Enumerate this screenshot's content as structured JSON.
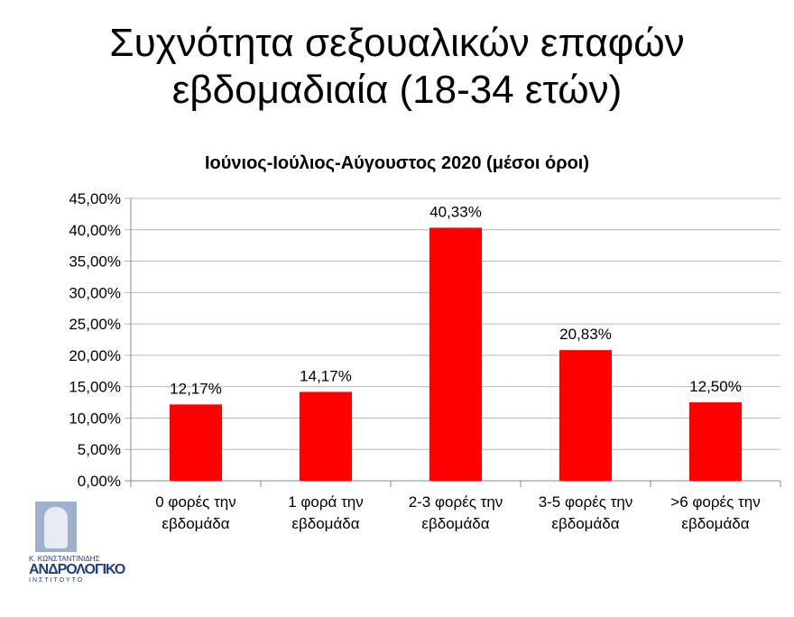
{
  "title_line1": "Συχνότητα σεξουαλικών επαφών",
  "title_line2": "εβδομαδιαία (18-34 ετών)",
  "chart_data": {
    "type": "bar",
    "title": "Ιούνιος-Ιούλιος-Αύγουστος 2020 (μέσοι όροι)",
    "categories": [
      [
        "0 φορές την",
        "εβδομάδα"
      ],
      [
        "1 φορά την",
        "εβδομάδα"
      ],
      [
        "2-3 φορές την",
        "εβδομάδα"
      ],
      [
        "3-5 φορές την",
        "εβδομάδα"
      ],
      [
        ">6 φορές την",
        "εβδομάδα"
      ]
    ],
    "values": [
      12.17,
      14.17,
      40.33,
      20.83,
      12.5
    ],
    "data_labels": [
      "12,17%",
      "14,17%",
      "40,33%",
      "20,83%",
      "12,50%"
    ],
    "ylim": [
      0,
      45
    ],
    "yticks": [
      "0,00%",
      "5,00%",
      "10,00%",
      "15,00%",
      "20,00%",
      "25,00%",
      "30,00%",
      "35,00%",
      "40,00%",
      "45,00%"
    ],
    "grid": true,
    "legend": "none",
    "bar_color": "#ff0000"
  },
  "logo": {
    "line1": "Κ. ΚΩΝΣΤΑΝΤΙΝΙΔΗΣ",
    "line2": "ΑΝΔΡΟΛΟΓΙΚΟ",
    "line3": "ΙΝΣΤΙΤΟΥΤΟ"
  }
}
